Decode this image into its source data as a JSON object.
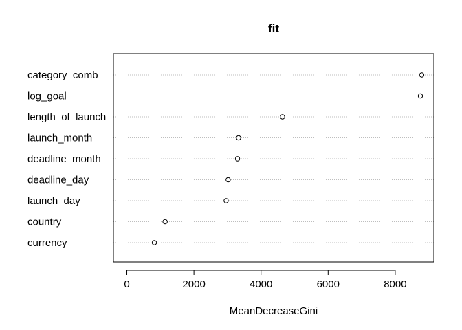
{
  "chart_data": {
    "type": "dotchart",
    "title": "fit",
    "xlabel": "MeanDecreaseGini",
    "ylabel": "",
    "xlim": [
      -400,
      9150
    ],
    "xticks": [
      0,
      2000,
      4000,
      6000,
      8000
    ],
    "xtick_labels": [
      "0",
      "2000",
      "4000",
      "6000",
      "8000"
    ],
    "grid": "dotted horizontal lines",
    "categories": [
      "category_comb",
      "log_goal",
      "length_of_launch",
      "launch_month",
      "deadline_month",
      "deadline_day",
      "launch_day",
      "country",
      "currency"
    ],
    "values": [
      8790,
      8750,
      4640,
      3330,
      3300,
      3020,
      2960,
      1140,
      820
    ],
    "colors": {
      "axis": "#000000",
      "grid": "#bebebe",
      "point": "#000000"
    }
  }
}
